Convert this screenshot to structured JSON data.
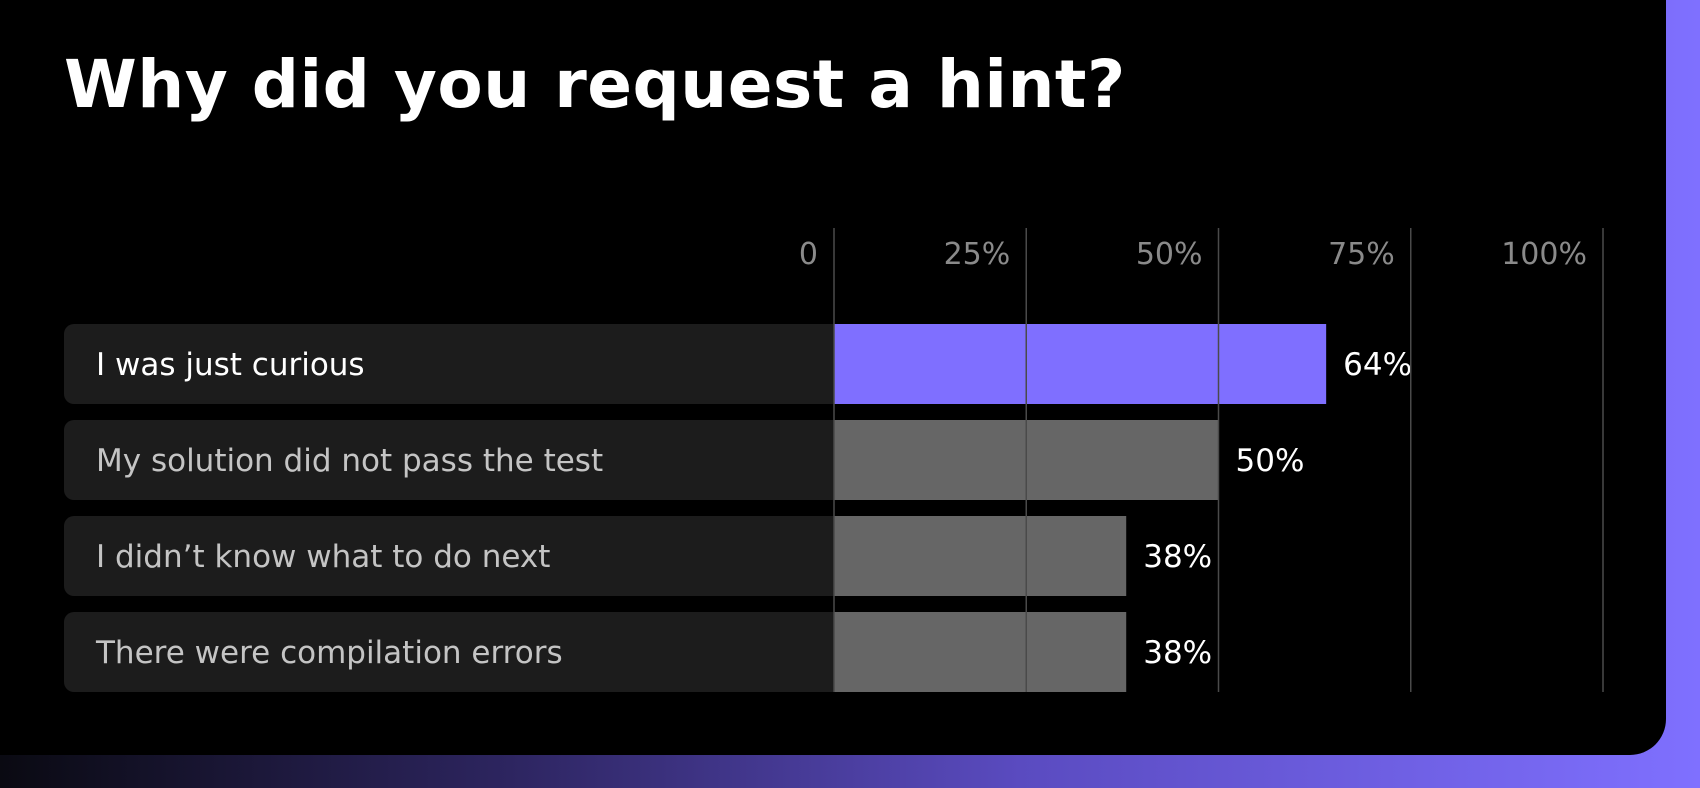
{
  "title": "Why did you request a hint?",
  "chart_data": {
    "type": "bar",
    "orientation": "horizontal",
    "title": "Why did you request a hint?",
    "categories": [
      "I was just curious",
      "My solution did not pass the test",
      "I didn’t know what to do next",
      "There were compilation errors"
    ],
    "values": [
      64,
      50,
      38,
      38
    ],
    "value_labels": [
      "64%",
      "50%",
      "38%",
      "38%"
    ],
    "x_ticks": [
      0,
      25,
      50,
      75,
      100
    ],
    "x_tick_labels": [
      "0",
      "25%",
      "50%",
      "75%",
      "100%"
    ],
    "xlim": [
      0,
      100
    ],
    "grid": true,
    "highlight_index": 0,
    "colors": {
      "highlight": "#7f6fff",
      "bar": "#666666",
      "row_bg": "#1c1c1c",
      "highlight_label": "#ffffff",
      "label": "#c4c4c4",
      "grid": "#4a4a4a",
      "background": "#000000",
      "accent": "#7f6fff"
    }
  }
}
